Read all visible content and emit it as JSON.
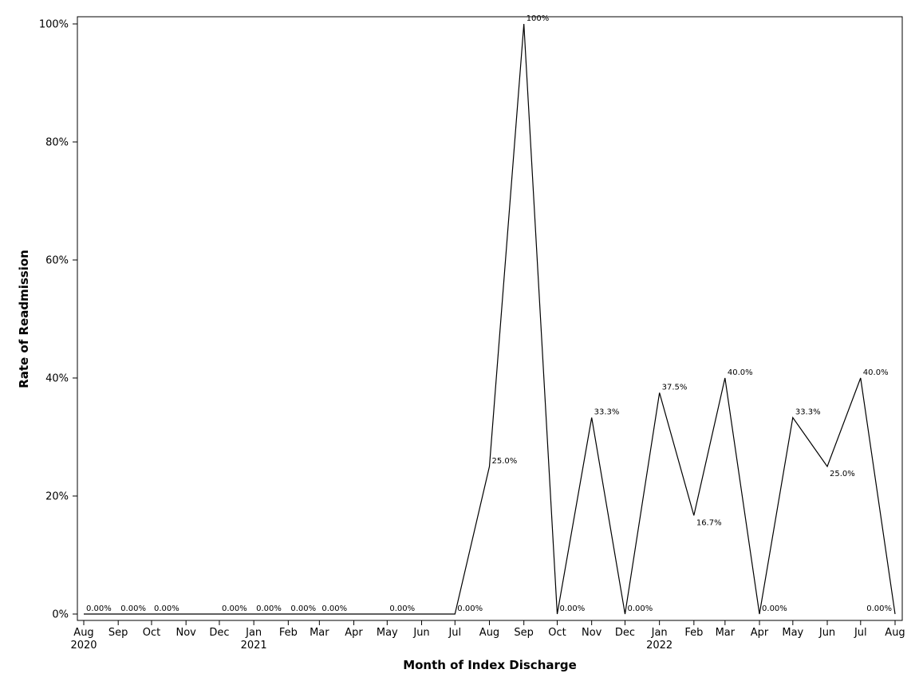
{
  "chart_data": {
    "type": "line",
    "title": "",
    "xlabel": "Month of Index Discharge",
    "ylabel": "Rate of Readmission",
    "x_tick_months": [
      "Aug",
      "Sep",
      "Oct",
      "Nov",
      "Dec",
      "Jan",
      "Feb",
      "Mar",
      "Apr",
      "May",
      "Jun",
      "Jul",
      "Aug",
      "Sep",
      "Oct",
      "Nov",
      "Dec",
      "Jan",
      "Feb",
      "Mar",
      "Apr",
      "May",
      "Jun",
      "Jul",
      "Aug"
    ],
    "x_tick_dates": [
      "2020-08-01",
      "2020-09-01",
      "2020-10-01",
      "2020-11-01",
      "2020-12-01",
      "2021-01-01",
      "2021-02-01",
      "2021-03-01",
      "2021-04-01",
      "2021-05-01",
      "2021-06-01",
      "2021-07-01",
      "2021-08-01",
      "2021-09-01",
      "2021-10-01",
      "2021-11-01",
      "2021-12-01",
      "2022-01-01",
      "2022-02-01",
      "2022-03-01",
      "2022-04-01",
      "2022-05-01",
      "2022-06-01",
      "2022-07-01",
      "2022-08-01"
    ],
    "x_year_labels": [
      {
        "date": "2020-08-01",
        "label": "2020"
      },
      {
        "date": "2021-01-01",
        "label": "2021"
      },
      {
        "date": "2022-01-01",
        "label": "2022"
      }
    ],
    "xlim": [
      "2020-08-01",
      "2022-08-01"
    ],
    "ylim": [
      0,
      100
    ],
    "y_ticks": [
      {
        "value": 0,
        "label": "0%"
      },
      {
        "value": 20,
        "label": "20%"
      },
      {
        "value": 40,
        "label": "40%"
      },
      {
        "value": 60,
        "label": "60%"
      },
      {
        "value": 80,
        "label": "80%"
      },
      {
        "value": 100,
        "label": "100%"
      }
    ],
    "grid": false,
    "series": [
      {
        "points": [
          {
            "x": "2020-08-01",
            "y": 0,
            "label": "0.00%"
          },
          {
            "x": "2020-09-01",
            "y": 0,
            "label": "0.00%"
          },
          {
            "x": "2020-10-01",
            "y": 0,
            "label": "0.00%"
          },
          {
            "x": "2020-12-01",
            "y": 0,
            "label": "0.00%"
          },
          {
            "x": "2021-01-01",
            "y": 0,
            "label": "0.00%"
          },
          {
            "x": "2021-02-01",
            "y": 0,
            "label": "0.00%"
          },
          {
            "x": "2021-03-01",
            "y": 0,
            "label": "0.00%"
          },
          {
            "x": "2021-05-01",
            "y": 0,
            "label": "0.00%"
          },
          {
            "x": "2021-07-01",
            "y": 0,
            "label": "0.00%"
          },
          {
            "x": "2021-08-01",
            "y": 25.0,
            "label": "25.0%"
          },
          {
            "x": "2021-09-01",
            "y": 100,
            "label": "100%"
          },
          {
            "x": "2021-10-01",
            "y": 0,
            "label": "0.00%"
          },
          {
            "x": "2021-11-01",
            "y": 33.3,
            "label": "33.3%"
          },
          {
            "x": "2021-12-01",
            "y": 0,
            "label": "0.00%"
          },
          {
            "x": "2022-01-01",
            "y": 37.5,
            "label": "37.5%"
          },
          {
            "x": "2022-02-01",
            "y": 16.7,
            "label": "16.7%"
          },
          {
            "x": "2022-03-01",
            "y": 40.0,
            "label": "40.0%"
          },
          {
            "x": "2022-04-01",
            "y": 0,
            "label": "0.00%"
          },
          {
            "x": "2022-05-01",
            "y": 33.3,
            "label": "33.3%"
          },
          {
            "x": "2022-06-01",
            "y": 25.0,
            "label": "25.0%"
          },
          {
            "x": "2022-07-01",
            "y": 40.0,
            "label": "40.0%"
          },
          {
            "x": "2022-08-01",
            "y": 0,
            "label": "0.00%"
          }
        ]
      }
    ],
    "colors": {
      "line": "#000000",
      "axis": "#000000",
      "background": "#ffffff"
    }
  }
}
